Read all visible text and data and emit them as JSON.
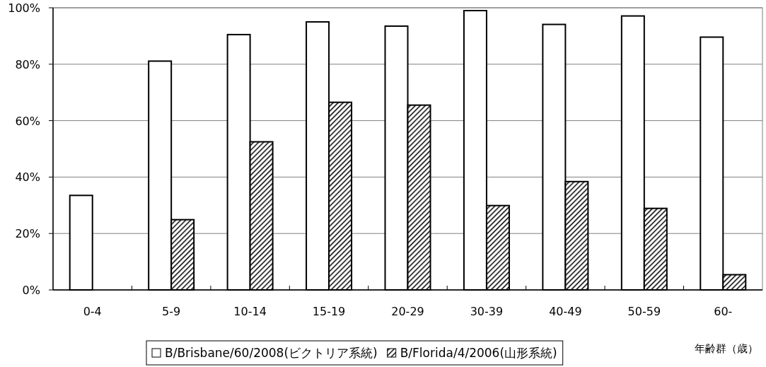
{
  "chart_data": {
    "type": "bar",
    "xlabel": "年齢群（歳）",
    "categories": [
      "0-4",
      "5-9",
      "10-14",
      "15-19",
      "20-29",
      "30-39",
      "40-49",
      "50-59",
      "60-"
    ],
    "series": [
      {
        "name": "B/Brisbane/60/2008(ビクトリア系統)",
        "color": "#ffffff",
        "values": [
          33.5,
          81.1,
          90.5,
          95.0,
          93.5,
          99.0,
          94.1,
          97.1,
          89.6
        ]
      },
      {
        "name": "B/Florida/4/2006(山形系統)",
        "color": "#000000",
        "values": [
          null,
          24.9,
          52.5,
          66.5,
          65.5,
          29.9,
          38.4,
          28.9,
          5.4
        ]
      }
    ],
    "ylim": [
      0,
      100
    ],
    "yticks": [
      {
        "value": 0,
        "label": "0%"
      },
      {
        "value": 20,
        "label": "20%"
      },
      {
        "value": 40,
        "label": "40%"
      },
      {
        "value": 60,
        "label": "60%"
      },
      {
        "value": 80,
        "label": "80%"
      },
      {
        "value": 100,
        "label": "100%"
      }
    ],
    "grid": "y",
    "legend": "bottom"
  }
}
